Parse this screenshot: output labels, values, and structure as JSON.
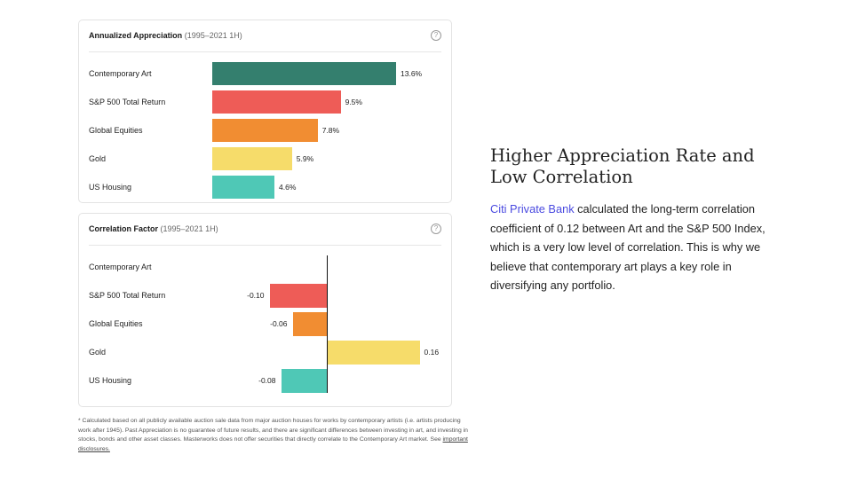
{
  "chart_data": [
    {
      "type": "bar",
      "orientation": "horizontal",
      "title": "Annualized Appreciation",
      "subtitle": "(1995–2021 1H)",
      "categories": [
        "Contemporary Art",
        "S&P 500 Total Return",
        "Global Equities",
        "Gold",
        "US Housing"
      ],
      "values": [
        13.6,
        9.5,
        7.8,
        5.9,
        4.6
      ],
      "value_labels": [
        "13.6%",
        "9.5%",
        "7.8%",
        "5.9%",
        "4.6%"
      ],
      "colors": [
        "#347f6e",
        "#ee5c57",
        "#f18d32",
        "#f6dc6a",
        "#4fc8b6"
      ],
      "xlim": [
        0,
        13.6
      ],
      "unit": "%"
    },
    {
      "type": "bar",
      "orientation": "horizontal",
      "title": "Correlation Factor",
      "subtitle": "(1995–2021 1H)",
      "categories": [
        "Contemporary Art",
        "S&P 500 Total Return",
        "Global Equities",
        "Gold",
        "US Housing"
      ],
      "values": [
        null,
        -0.1,
        -0.06,
        0.16,
        -0.08
      ],
      "value_labels": [
        "",
        "-0.10",
        "-0.06",
        "0.16",
        "-0.08"
      ],
      "colors": [
        "#347f6e",
        "#ee5c57",
        "#f18d32",
        "#f6dc6a",
        "#4fc8b6"
      ],
      "xlim": [
        -0.1,
        0.16
      ]
    }
  ],
  "footnote": {
    "text": "* Calculated based on all publicly available auction sale data from major auction houses for works by contemporary artists (i.e. artists producing work after 1945). Past Appreciation is no guarantee of future results, and there are significant differences between investing in art, and investing in stocks, bonds and other asset classes. Masterworks does not offer securities that directly correlate to the Contemporary Art market. See ",
    "link": "important disclosures."
  },
  "article": {
    "heading": "Higher Appreciation Rate and Low Correlation",
    "link_text": "Citi Private Bank",
    "body": " calculated the long-term correlation coefficient of 0.12 between Art and the S&P 500 Index, which is a very low level of correlation. This is why we believe that contemporary art plays a key role in diversifying any portfolio."
  },
  "help_glyph": "?"
}
